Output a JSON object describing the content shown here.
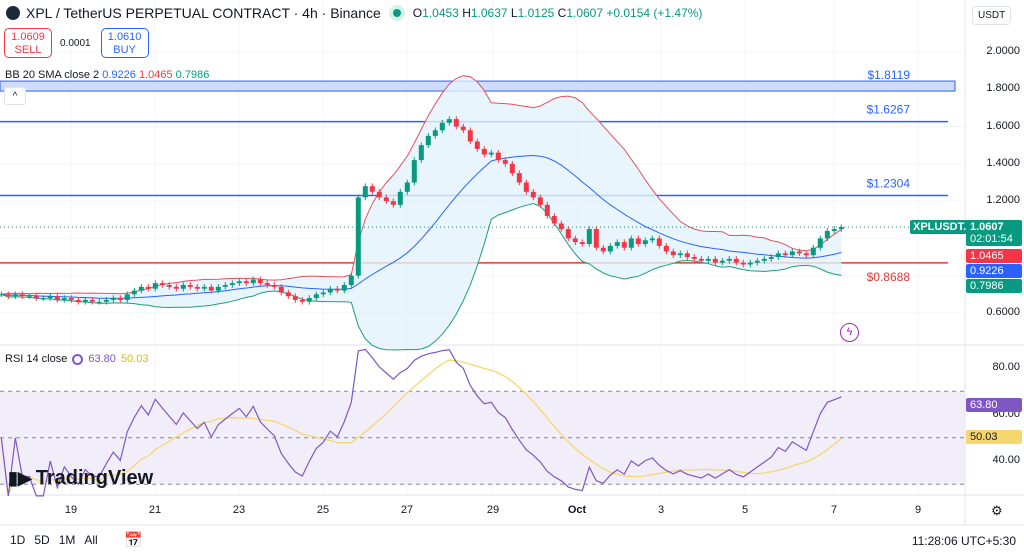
{
  "header": {
    "title": "XPL / TetherUS PERPETUAL CONTRACT · 4h · Binance",
    "open": "1.0453",
    "high": "1.0637",
    "low": "1.0125",
    "close": "1.0607",
    "change": "+0.0154 (+1.47%)",
    "o_label": "O",
    "h_label": "H",
    "l_label": "L",
    "c_label": "C"
  },
  "trade": {
    "sell_price": "1.0609",
    "sell_label": "SELL",
    "spread": "0.0001",
    "buy_price": "1.0610",
    "buy_label": "BUY"
  },
  "currency": "USDT",
  "bb_legend": {
    "label": "BB 20 SMA close 2",
    "basis": "0.9226",
    "upper": "1.0465",
    "lower": "0.7986"
  },
  "rsi_legend": {
    "label": "RSI 14 close",
    "rsi": "63.80",
    "ma": "50.03"
  },
  "levels": [
    {
      "price": 1.8119,
      "label": "$1.8119",
      "color": "#2962ff"
    },
    {
      "price": 1.6267,
      "label": "$1.6267",
      "color": "#2962ff"
    },
    {
      "price": 1.2304,
      "label": "$1.2304",
      "color": "#2962ff"
    },
    {
      "price": 0.8688,
      "label": "$0.8688",
      "color": "#e53935"
    }
  ],
  "price_axis": [
    "2.0000",
    "1.8000",
    "1.6000",
    "1.4000",
    "1.2000",
    "0.6000"
  ],
  "rsi_axis": [
    "80.00",
    "60.00",
    "40.00"
  ],
  "price_labels": {
    "symbol": "XPLUSDT.P",
    "last": "1.0607",
    "countdown": "02:01:54",
    "upper": "1.0465",
    "basis": "0.9226",
    "lower": "0.7986"
  },
  "time_axis": [
    "19",
    "21",
    "23",
    "25",
    "27",
    "29",
    "Oct",
    "3",
    "5",
    "7",
    "9"
  ],
  "ranges": [
    "1D",
    "5D",
    "1M",
    "All"
  ],
  "clock": "11:28:06 UTC+5:30",
  "brand": "TradingView",
  "colors": {
    "up": "#089981",
    "down": "#f23645",
    "bb_upper": "#e0535d",
    "bb_basis": "#2962ff",
    "bb_lower": "#1e9e79",
    "rsi": "#7e57c2",
    "rsi_ma": "#f5d76e"
  },
  "chart_data": {
    "type": "candlestick",
    "interval": "4h",
    "ylim": [
      0.5,
      2.05
    ],
    "close": [
      0.7,
      0.69,
      0.7,
      0.69,
      0.69,
      0.68,
      0.68,
      0.69,
      0.67,
      0.68,
      0.67,
      0.66,
      0.67,
      0.66,
      0.66,
      0.67,
      0.68,
      0.67,
      0.7,
      0.72,
      0.74,
      0.73,
      0.76,
      0.75,
      0.74,
      0.73,
      0.75,
      0.74,
      0.73,
      0.74,
      0.72,
      0.74,
      0.75,
      0.76,
      0.77,
      0.76,
      0.78,
      0.76,
      0.75,
      0.74,
      0.71,
      0.69,
      0.67,
      0.66,
      0.68,
      0.7,
      0.71,
      0.73,
      0.72,
      0.75,
      0.8,
      1.22,
      1.28,
      1.25,
      1.22,
      1.2,
      1.18,
      1.25,
      1.3,
      1.42,
      1.5,
      1.55,
      1.58,
      1.62,
      1.64,
      1.6,
      1.58,
      1.52,
      1.48,
      1.45,
      1.46,
      1.42,
      1.4,
      1.35,
      1.3,
      1.25,
      1.22,
      1.18,
      1.12,
      1.08,
      1.05,
      1.0,
      0.98,
      0.97,
      1.05,
      0.95,
      0.93,
      0.96,
      0.98,
      0.95,
      1.0,
      0.97,
      0.99,
      1.0,
      0.96,
      0.93,
      0.91,
      0.92,
      0.9,
      0.89,
      0.88,
      0.89,
      0.87,
      0.88,
      0.89,
      0.87,
      0.86,
      0.87,
      0.88,
      0.89,
      0.9,
      0.92,
      0.91,
      0.93,
      0.92,
      0.91,
      0.95,
      1.0,
      1.04,
      1.05,
      1.0607
    ],
    "indicators": [
      "BB 20 SMA close 2",
      "RSI 14 close"
    ],
    "rsi_levels": [
      70,
      50,
      30
    ]
  }
}
